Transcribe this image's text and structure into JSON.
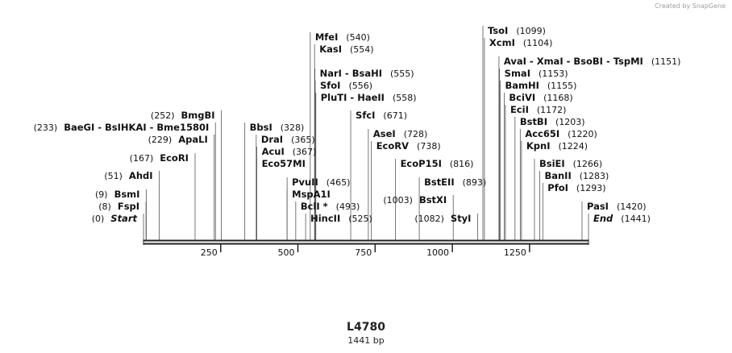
{
  "credit": "Created by SnapGene",
  "map": {
    "name": "L4780",
    "length_label": "1441 bp",
    "length": 1441,
    "ticks": [
      "250",
      "500",
      "750",
      "1000",
      "1250"
    ]
  },
  "sites": [
    {
      "name": "Start",
      "pos": 0,
      "label": "(0)",
      "italic": true
    },
    {
      "name": "FspI",
      "pos": 8,
      "label": "(8)"
    },
    {
      "name": "BsmI",
      "pos": 9,
      "label": "(9)"
    },
    {
      "name": "AhdI",
      "pos": 51,
      "label": "(51)"
    },
    {
      "name": "EcoRI",
      "pos": 167,
      "label": "(167)"
    },
    {
      "name": "ApaLI",
      "pos": 229,
      "label": "(229)"
    },
    {
      "name": "BaeGI  -  BsIHKAI  -  Bme1580I",
      "pos": 233,
      "label": "(233)"
    },
    {
      "name": "BmgBI",
      "pos": 252,
      "label": "(252)"
    },
    {
      "name": "BbsI",
      "pos": 328,
      "label": "(328)"
    },
    {
      "name": "DraI",
      "pos": 365,
      "label": "(365)"
    },
    {
      "name": "AcuI",
      "pos": 367,
      "label": "(367)"
    },
    {
      "name": "Eco57MI",
      "pos": 367,
      "label": ""
    },
    {
      "name": "PvuII",
      "pos": 465,
      "label": "(465)"
    },
    {
      "name": "MspA1I",
      "pos": 465,
      "label": ""
    },
    {
      "name": "BclI *",
      "pos": 493,
      "label": "(493)"
    },
    {
      "name": "HincII",
      "pos": 525,
      "label": "(525)"
    },
    {
      "name": "MfeI",
      "pos": 540,
      "label": "(540)"
    },
    {
      "name": "KasI",
      "pos": 554,
      "label": "(554)"
    },
    {
      "name": "NarI  -  BsaHI",
      "pos": 555,
      "label": "(555)"
    },
    {
      "name": "SfoI",
      "pos": 556,
      "label": "(556)"
    },
    {
      "name": "PluTI  -  HaeII",
      "pos": 558,
      "label": "(558)"
    },
    {
      "name": "SfcI",
      "pos": 671,
      "label": "(671)"
    },
    {
      "name": "AseI",
      "pos": 728,
      "label": "(728)"
    },
    {
      "name": "EcoRV",
      "pos": 738,
      "label": "(738)"
    },
    {
      "name": "EcoP15I",
      "pos": 816,
      "label": "(816)"
    },
    {
      "name": "BstEII",
      "pos": 893,
      "label": "(893)"
    },
    {
      "name": "BstXI",
      "pos": 1003,
      "label": "(1003)"
    },
    {
      "name": "StyI",
      "pos": 1082,
      "label": "(1082)"
    },
    {
      "name": "TsoI",
      "pos": 1099,
      "label": "(1099)"
    },
    {
      "name": "XcmI",
      "pos": 1104,
      "label": "(1104)"
    },
    {
      "name": "AvaI  -  XmaI  -  BsoBI  -  TspMI",
      "pos": 1151,
      "label": "(1151)"
    },
    {
      "name": "SmaI",
      "pos": 1153,
      "label": "(1153)"
    },
    {
      "name": "BamHI",
      "pos": 1155,
      "label": "(1155)"
    },
    {
      "name": "BciVI",
      "pos": 1168,
      "label": "(1168)"
    },
    {
      "name": "EciI",
      "pos": 1172,
      "label": "(1172)"
    },
    {
      "name": "BstBI",
      "pos": 1203,
      "label": "(1203)"
    },
    {
      "name": "Acc65I",
      "pos": 1220,
      "label": "(1220)"
    },
    {
      "name": "KpnI",
      "pos": 1224,
      "label": "(1224)"
    },
    {
      "name": "BsiEI",
      "pos": 1266,
      "label": "(1266)"
    },
    {
      "name": "BanII",
      "pos": 1283,
      "label": "(1283)"
    },
    {
      "name": "PfoI",
      "pos": 1293,
      "label": "(1293)"
    },
    {
      "name": "PasI",
      "pos": 1420,
      "label": "(1420)"
    },
    {
      "name": "End",
      "pos": 1441,
      "label": "(1441)",
      "italic": true
    }
  ]
}
